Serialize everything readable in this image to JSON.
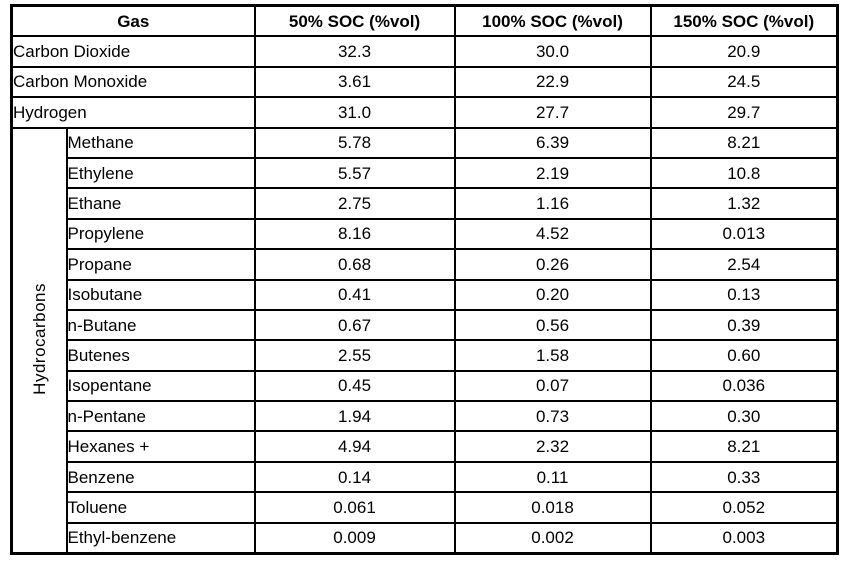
{
  "table": {
    "header": {
      "gas": "Gas",
      "soc50": "50% SOC (%vol)",
      "soc100": "100% SOC (%vol)",
      "soc150": "150% SOC (%vol)"
    },
    "group_label": "Hydrocarbons",
    "rows_plain": [
      {
        "name": "Carbon Dioxide",
        "v50": "32.3",
        "v100": "30.0",
        "v150": "20.9"
      },
      {
        "name": "Carbon Monoxide",
        "v50": "3.61",
        "v100": "22.9",
        "v150": "24.5"
      },
      {
        "name": "Hydrogen",
        "v50": "31.0",
        "v100": "27.7",
        "v150": "29.7"
      }
    ],
    "rows_hydrocarbons": [
      {
        "name": "Methane",
        "v50": "5.78",
        "v100": "6.39",
        "v150": "8.21"
      },
      {
        "name": "Ethylene",
        "v50": "5.57",
        "v100": "2.19",
        "v150": "10.8"
      },
      {
        "name": "Ethane",
        "v50": "2.75",
        "v100": "1.16",
        "v150": "1.32"
      },
      {
        "name": "Propylene",
        "v50": "8.16",
        "v100": "4.52",
        "v150": "0.013"
      },
      {
        "name": "Propane",
        "v50": "0.68",
        "v100": "0.26",
        "v150": "2.54"
      },
      {
        "name": "Isobutane",
        "v50": "0.41",
        "v100": "0.20",
        "v150": "0.13"
      },
      {
        "name": "n-Butane",
        "v50": "0.67",
        "v100": "0.56",
        "v150": "0.39"
      },
      {
        "name": "Butenes",
        "v50": "2.55",
        "v100": "1.58",
        "v150": "0.60"
      },
      {
        "name": "Isopentane",
        "v50": "0.45",
        "v100": "0.07",
        "v150": "0.036"
      },
      {
        "name": "n-Pentane",
        "v50": "1.94",
        "v100": "0.73",
        "v150": "0.30"
      },
      {
        "name": "Hexanes +",
        "v50": "4.94",
        "v100": "2.32",
        "v150": "8.21"
      },
      {
        "name": "Benzene",
        "v50": "0.14",
        "v100": "0.11",
        "v150": "0.33"
      },
      {
        "name": "Toluene",
        "v50": "0.061",
        "v100": "0.018",
        "v150": "0.052"
      },
      {
        "name": "Ethyl-benzene",
        "v50": "0.009",
        "v100": "0.002",
        "v150": "0.003"
      }
    ],
    "colors": {
      "border": "#000000",
      "text": "#000000",
      "background": "#ffffff"
    }
  }
}
